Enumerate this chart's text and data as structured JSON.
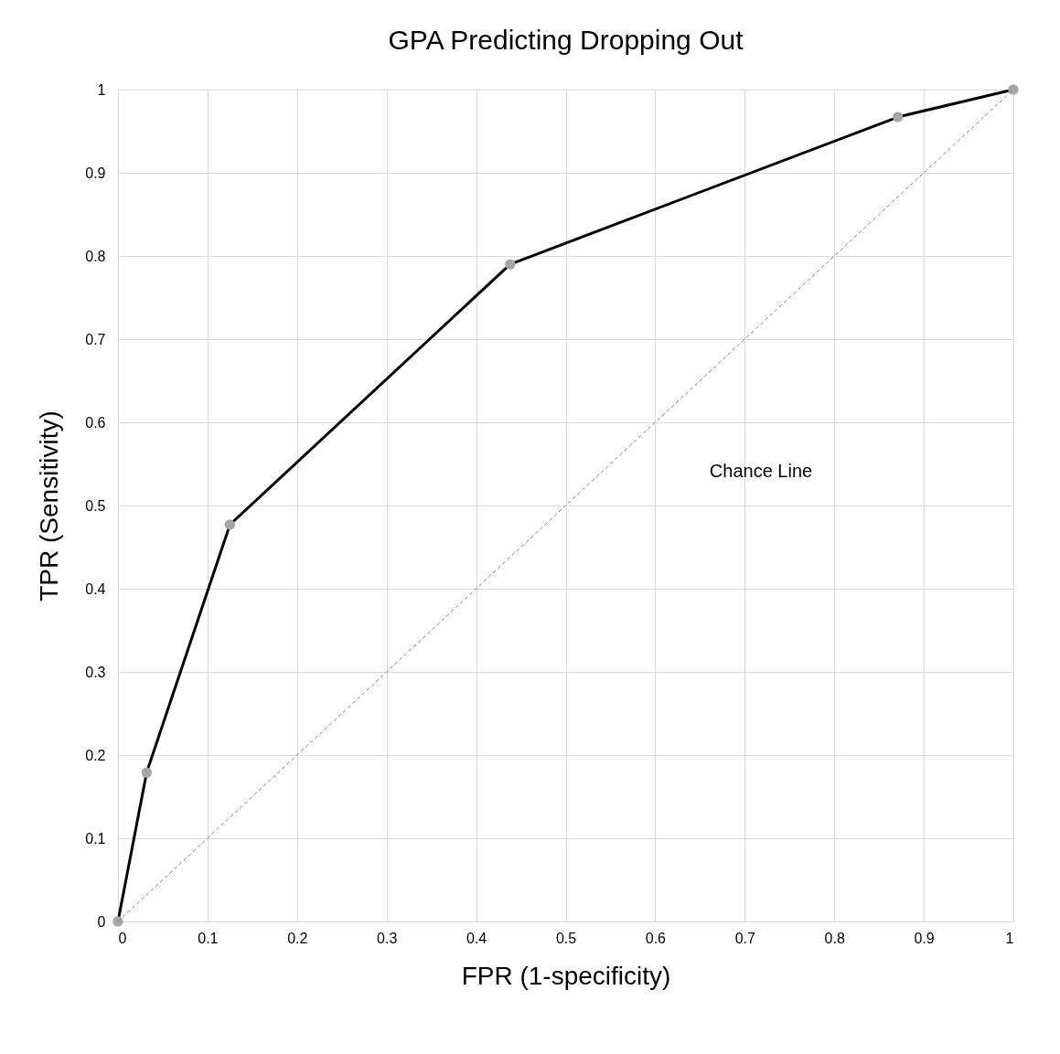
{
  "chart_data": {
    "type": "line",
    "title": "GPA Predicting Dropping Out",
    "xlabel": "FPR (1-specificity)",
    "ylabel": "TPR (Sensitivity)",
    "xlim": [
      0,
      1
    ],
    "ylim": [
      0,
      1
    ],
    "xticks": [
      0,
      0.1,
      0.2,
      0.3,
      0.4,
      0.5,
      0.6,
      0.7,
      0.8,
      0.9,
      1
    ],
    "yticks": [
      0,
      0.1,
      0.2,
      0.3,
      0.4,
      0.5,
      0.6,
      0.7,
      0.8,
      0.9,
      1
    ],
    "grid": true,
    "series": [
      {
        "color": "#000000",
        "marker": "circle",
        "line_style": "solid",
        "x": [
          0,
          0.032,
          0.125,
          0.438,
          0.871,
          1
        ],
        "values": [
          0,
          0.179,
          0.477,
          0.79,
          0.967,
          1
        ]
      },
      {
        "color": "#808080",
        "marker": "none",
        "line_style": "dashed",
        "x": [
          0,
          1
        ],
        "values": [
          0,
          1
        ]
      }
    ],
    "annotations": [
      "Chance Line"
    ]
  }
}
